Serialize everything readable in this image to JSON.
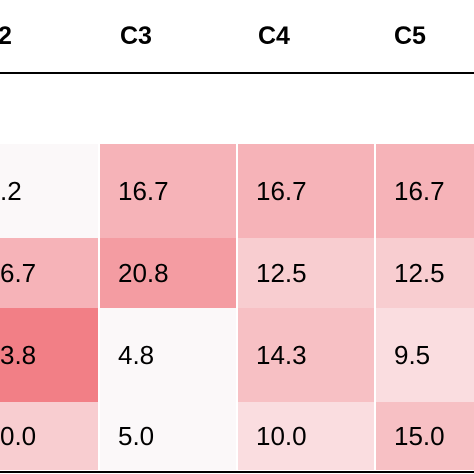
{
  "chart_data": {
    "type": "heatmap",
    "columns": [
      "2",
      "C3",
      "C4",
      "C5"
    ],
    "rows": [
      {
        "values": [
          ".2",
          "16.7",
          "16.7",
          "16.7"
        ],
        "colors": [
          "#fbf8f9",
          "#f6b3b8",
          "#f6b3b8",
          "#f6b3b8"
        ]
      },
      {
        "values": [
          "6.7",
          "20.8",
          "12.5",
          "12.5"
        ],
        "colors": [
          "#f6b3b8",
          "#f49ca2",
          "#f8cdd0",
          "#f8cdd0"
        ]
      },
      {
        "values": [
          "3.8",
          "4.8",
          "14.3",
          "9.5"
        ],
        "colors": [
          "#f27f86",
          "#fbf8f9",
          "#f7c0c4",
          "#fadde0"
        ]
      },
      {
        "values": [
          "0.0",
          "5.0",
          "10.0",
          "15.0"
        ],
        "colors": [
          "#f8cdd0",
          "#fbf8f9",
          "#fadde0",
          "#f7c0c4"
        ]
      }
    ]
  }
}
